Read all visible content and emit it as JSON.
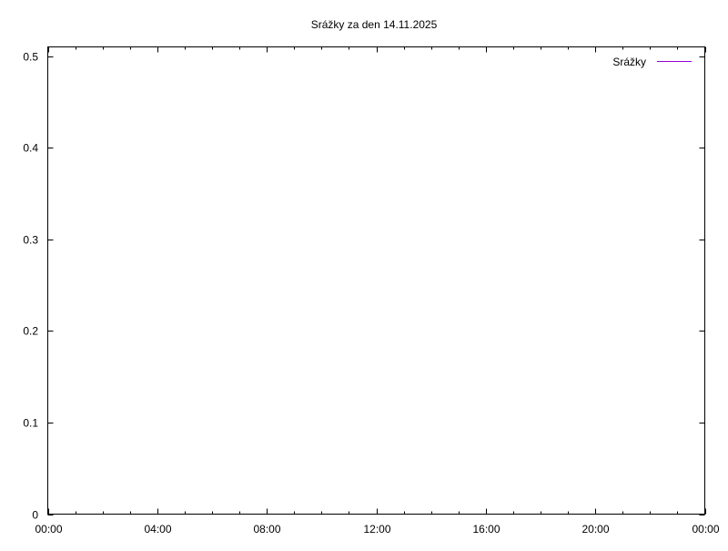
{
  "chart_data": {
    "type": "line",
    "title": "Srážky za den 14.11.2025",
    "xlabel": "",
    "ylabel": "",
    "xlim": [
      "00:00",
      "24:00"
    ],
    "ylim": [
      0,
      0.51
    ],
    "x_ticks": [
      "00:00",
      "04:00",
      "08:00",
      "12:00",
      "16:00",
      "20:00",
      "00:00"
    ],
    "y_ticks": [
      "0",
      "0.1",
      "0.2",
      "0.3",
      "0.4",
      "0.5"
    ],
    "y_tick_values": [
      0,
      0.1,
      0.2,
      0.3,
      0.4,
      0.5
    ],
    "x_minor_tick_interval_hours": 1,
    "grid": false,
    "legend_position": "top-right",
    "series": [
      {
        "name": "Srážky",
        "color": "#9400d3",
        "x": [],
        "y": []
      }
    ]
  }
}
